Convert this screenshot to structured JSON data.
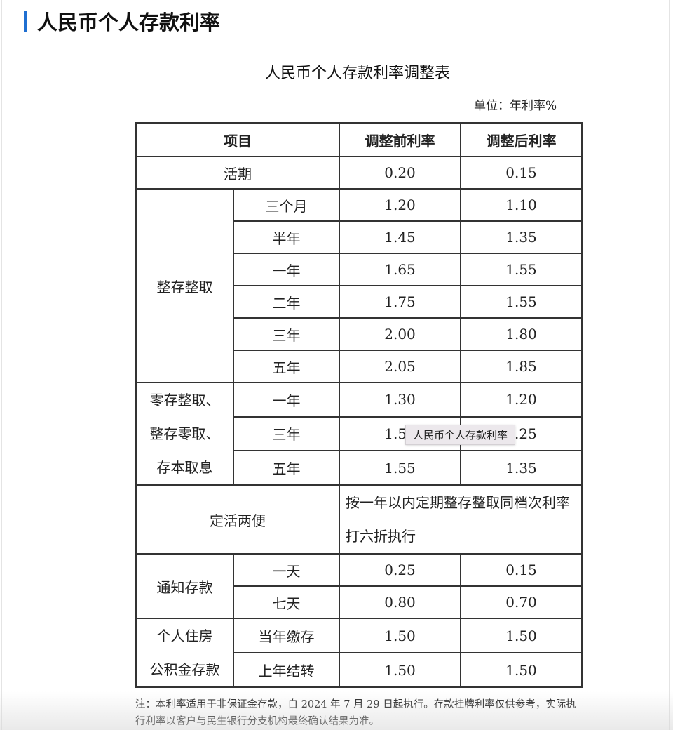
{
  "section_title": "人民币个人存款利率",
  "doc": {
    "title": "人民币个人存款利率调整表",
    "unit": "单位：年利率%",
    "headers": [
      "项目",
      "调整前利率",
      "调整后利率"
    ],
    "current": {
      "label": "活期",
      "before": "0.20",
      "after": "0.15"
    },
    "lump_sum": {
      "label": "整存整取",
      "rows": [
        {
          "term": "三个月",
          "before": "1.20",
          "after": "1.10"
        },
        {
          "term": "半年",
          "before": "1.45",
          "after": "1.35"
        },
        {
          "term": "一年",
          "before": "1.65",
          "after": "1.55"
        },
        {
          "term": "二年",
          "before": "1.75",
          "after": "1.55"
        },
        {
          "term": "三年",
          "before": "2.00",
          "after": "1.80"
        },
        {
          "term": "五年",
          "before": "2.05",
          "after": "1.85"
        }
      ]
    },
    "installment": {
      "label_lines": [
        "零存整取、",
        "整存零取、",
        "存本取息"
      ],
      "rows": [
        {
          "term": "一年",
          "before": "1.30",
          "after": "1.20"
        },
        {
          "term": "三年",
          "before": "1.50",
          "after": "1.25"
        },
        {
          "term": "五年",
          "before": "1.55",
          "after": "1.35"
        }
      ]
    },
    "flexible": {
      "label": "定活两便",
      "text": "按一年以内定期整存整取同档次利率打六折执行"
    },
    "notice": {
      "label": "通知存款",
      "rows": [
        {
          "term": "一天",
          "before": "0.25",
          "after": "0.15"
        },
        {
          "term": "七天",
          "before": "0.80",
          "after": "0.70"
        }
      ]
    },
    "housing": {
      "label_lines": [
        "个人住房",
        "公积金存款"
      ],
      "rows": [
        {
          "term": "当年缴存",
          "before": "1.50",
          "after": "1.50"
        },
        {
          "term": "上年结转",
          "before": "1.50",
          "after": "1.50"
        }
      ]
    },
    "note": "注：本利率适用于非保证金存款，自 2024 年 7 月 29 日起执行。存款挂牌利率仅供参考，实际执行利率以客户与民生银行分支机构最终确认结果为准。"
  },
  "tooltip": "人民币个人存款利率"
}
